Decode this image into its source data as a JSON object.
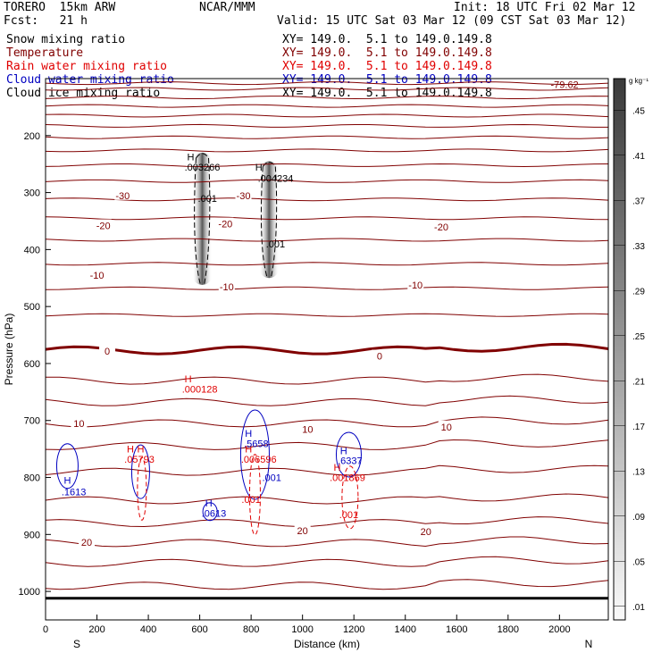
{
  "header": {
    "model": "TORERO  15km ARW",
    "org": "NCAR/MMM",
    "init": "Init: 18 UTC Fri 02 Mar 12",
    "fcst": "Fcst:   21 h",
    "valid": "Valid: 15 UTC Sat 03 Mar 12 (09 CST Sat 03 Mar 12)"
  },
  "fields": [
    {
      "name": "Snow mixing ratio",
      "color": "#000000",
      "xy": "XY= 149.0.  5.1 to 149.0.149.8"
    },
    {
      "name": "Temperature",
      "color": "#800000",
      "xy": "XY= 149.0.  5.1 to 149.0.149.8"
    },
    {
      "name": "Rain water mixing ratio",
      "color": "#e00000",
      "xy": "XY= 149.0.  5.1 to 149.0.149.8"
    },
    {
      "name": "Cloud water mixing ratio",
      "color": "#0000c0",
      "xy": "XY= 149.0.  5.1 to 149.0.149.8"
    },
    {
      "name": "Cloud ice mixing ratio",
      "color": "#000000",
      "xy": "XY= 149.0.  5.1 to 149.0.149.8"
    }
  ],
  "chart_data": {
    "type": "contour",
    "xlabel": "Distance (km)",
    "ylabel": "Pressure (hPa)",
    "x_ticks": [
      0,
      200,
      400,
      600,
      800,
      1000,
      1200,
      1400,
      1600,
      1800,
      2000
    ],
    "y_ticks": [
      200,
      300,
      400,
      500,
      600,
      700,
      800,
      900,
      1000
    ],
    "xlim": [
      0,
      2190
    ],
    "ylim": [
      100,
      1050
    ],
    "y_reversed": true,
    "x_end_labels": {
      "left": "S",
      "right": "N"
    },
    "colorbar": {
      "unit": "g kg⁻¹",
      "ticks": [
        ".01",
        ".05",
        ".09",
        ".13",
        ".17",
        ".21",
        ".25",
        ".29",
        ".33",
        ".37",
        ".41",
        ".45"
      ]
    },
    "temperature_contours": [
      {
        "label": "-30",
        "p": 305,
        "label_x": 300
      },
      {
        "label": "-30",
        "p": 305,
        "label_x": 770
      },
      {
        "label": "-20",
        "p": 358,
        "label_x": 225
      },
      {
        "label": "-20",
        "p": 355,
        "label_x": 700
      },
      {
        "label": "-20",
        "p": 360,
        "label_x": 1540
      },
      {
        "label": "-10",
        "p": 445,
        "label_x": 200
      },
      {
        "label": "-10",
        "p": 465,
        "label_x": 705
      },
      {
        "label": "-10",
        "p": 462,
        "label_x": 1440
      },
      {
        "label": "0",
        "p": 578,
        "label_x": 240
      },
      {
        "label": "0",
        "p": 587,
        "label_x": 1300
      },
      {
        "label": "10",
        "p": 705,
        "label_x": 130
      },
      {
        "label": "10",
        "p": 715,
        "label_x": 1020
      },
      {
        "label": "10",
        "p": 711,
        "label_x": 1560
      },
      {
        "label": "20",
        "p": 914,
        "label_x": 160
      },
      {
        "label": "20",
        "p": 893,
        "label_x": 1000
      },
      {
        "label": "20",
        "p": 895,
        "label_x": 1480
      }
    ],
    "annotations": [
      {
        "text": "-79.62",
        "x": 2020,
        "p": 110,
        "color": "#800000"
      },
      {
        "text": "H",
        "x": 565,
        "p": 237,
        "color": "#000000"
      },
      {
        "text": ".003266",
        "x": 610,
        "p": 255,
        "color": "#000000"
      },
      {
        "text": ".001",
        "x": 630,
        "p": 310,
        "color": "#000000"
      },
      {
        "text": "H",
        "x": 830,
        "p": 255,
        "color": "#000000"
      },
      {
        "text": ".004234",
        "x": 895,
        "p": 275,
        "color": "#000000"
      },
      {
        "text": ".001",
        "x": 895,
        "p": 390,
        "color": "#000000"
      },
      {
        "text": "H",
        "x": 555,
        "p": 627,
        "color": "#e00000"
      },
      {
        "text": ".000128",
        "x": 600,
        "p": 645,
        "color": "#e00000"
      },
      {
        "text": "H",
        "x": 330,
        "p": 750,
        "color": "#e00000"
      },
      {
        "text": "H",
        "x": 370,
        "p": 750,
        "color": "#e00000"
      },
      {
        "text": ".05793",
        "x": 365,
        "p": 768,
        "color": "#e00000"
      },
      {
        "text": "H",
        "x": 790,
        "p": 750,
        "color": "#e00000"
      },
      {
        "text": ".006596",
        "x": 830,
        "p": 768,
        "color": "#e00000"
      },
      {
        "text": ".001",
        "x": 800,
        "p": 838,
        "color": "#e00000"
      },
      {
        "text": "H",
        "x": 1135,
        "p": 782,
        "color": "#e00000"
      },
      {
        "text": ".001869",
        "x": 1175,
        "p": 800,
        "color": "#e00000"
      },
      {
        "text": ".001",
        "x": 1180,
        "p": 865,
        "color": "#e00000"
      },
      {
        "text": "H",
        "x": 85,
        "p": 805,
        "color": "#0000c0"
      },
      {
        "text": ".1613",
        "x": 110,
        "p": 825,
        "color": "#0000c0"
      },
      {
        "text": "H",
        "x": 635,
        "p": 845,
        "color": "#0000c0"
      },
      {
        "text": ".0613",
        "x": 655,
        "p": 863,
        "color": "#0000c0"
      },
      {
        "text": "H",
        "x": 790,
        "p": 722,
        "color": "#0000c0"
      },
      {
        "text": ".5658",
        "x": 820,
        "p": 740,
        "color": "#0000c0"
      },
      {
        "text": ".001",
        "x": 880,
        "p": 800,
        "color": "#0000c0"
      },
      {
        "text": "H",
        "x": 1160,
        "p": 753,
        "color": "#0000c0"
      },
      {
        "text": ".6337",
        "x": 1185,
        "p": 770,
        "color": "#0000c0"
      }
    ],
    "snow_plumes": [
      {
        "x": 610,
        "p_top": 230,
        "p_bottom": 462
      },
      {
        "x": 870,
        "p_top": 245,
        "p_bottom": 450
      }
    ]
  }
}
